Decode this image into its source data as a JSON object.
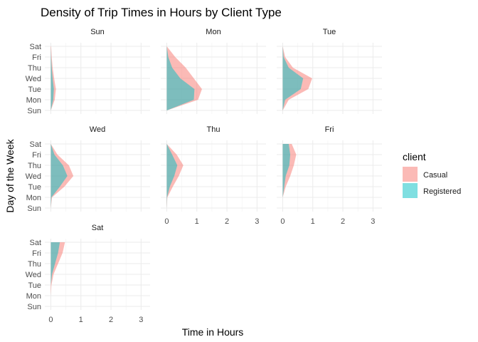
{
  "chart_data": {
    "type": "area",
    "title": "Density of Trip Times in Hours by Client Type",
    "xlabel": "Time in Hours",
    "ylabel": "Day of the Week",
    "xlim": [
      -0.2,
      3.3
    ],
    "x_ticks": [
      "0",
      "1",
      "2",
      "3"
    ],
    "x_tick_values": [
      0,
      1,
      2,
      3
    ],
    "y_categories": [
      "Sun",
      "Mon",
      "Tue",
      "Wed",
      "Thu",
      "Fri",
      "Sat"
    ],
    "grid": true,
    "stacked": true,
    "legend": {
      "title": "client",
      "position": "right",
      "entries": [
        "Casual",
        "Registered"
      ]
    },
    "colors": {
      "Casual": "#F8766D",
      "Registered": "#00BFC4"
    },
    "facets": [
      {
        "label": "Sun",
        "series": [
          {
            "name": "Registered",
            "y": [
              0.0,
              0.08,
              0.1,
              0.06,
              0.03,
              0.01,
              0.0
            ]
          },
          {
            "name": "Casual",
            "y": [
              0.0,
              0.05,
              0.07,
              0.05,
              0.03,
              0.02,
              0.01
            ]
          }
        ]
      },
      {
        "label": "Mon",
        "series": [
          {
            "name": "Registered",
            "y": [
              0.0,
              0.9,
              0.92,
              0.45,
              0.18,
              0.05,
              0.0
            ]
          },
          {
            "name": "Casual",
            "y": [
              0.0,
              0.14,
              0.25,
              0.45,
              0.45,
              0.23,
              0.0
            ]
          }
        ]
      },
      {
        "label": "Tue",
        "series": [
          {
            "name": "Registered",
            "y": [
              0.0,
              0.08,
              0.6,
              0.68,
              0.2,
              0.03,
              0.0
            ]
          },
          {
            "name": "Casual",
            "y": [
              0.0,
              0.12,
              0.25,
              0.3,
              0.14,
              0.05,
              0.0
            ]
          }
        ]
      },
      {
        "label": "Wed",
        "series": [
          {
            "name": "Registered",
            "y": [
              0.0,
              0.02,
              0.3,
              0.55,
              0.4,
              0.12,
              0.0
            ]
          },
          {
            "name": "Casual",
            "y": [
              0.0,
              0.02,
              0.15,
              0.2,
              0.2,
              0.1,
              0.0
            ]
          }
        ]
      },
      {
        "label": "Thu",
        "series": [
          {
            "name": "Registered",
            "y": [
              0.0,
              0.01,
              0.1,
              0.25,
              0.35,
              0.18,
              0.0
            ]
          },
          {
            "name": "Casual",
            "y": [
              0.0,
              0.01,
              0.1,
              0.15,
              0.2,
              0.15,
              0.0
            ]
          }
        ]
      },
      {
        "label": "Fri",
        "series": [
          {
            "name": "Registered",
            "y": [
              0.0,
              0.0,
              0.05,
              0.1,
              0.22,
              0.25,
              0.2
            ]
          },
          {
            "name": "Casual",
            "y": [
              0.0,
              0.0,
              0.05,
              0.15,
              0.15,
              0.2,
              0.1
            ]
          }
        ]
      },
      {
        "label": "Sat",
        "series": [
          {
            "name": "Registered",
            "y": [
              0.0,
              0.0,
              0.0,
              0.04,
              0.14,
              0.24,
              0.3
            ]
          },
          {
            "name": "Casual",
            "y": [
              0.0,
              0.0,
              0.02,
              0.05,
              0.1,
              0.15,
              0.17
            ]
          }
        ]
      }
    ]
  }
}
